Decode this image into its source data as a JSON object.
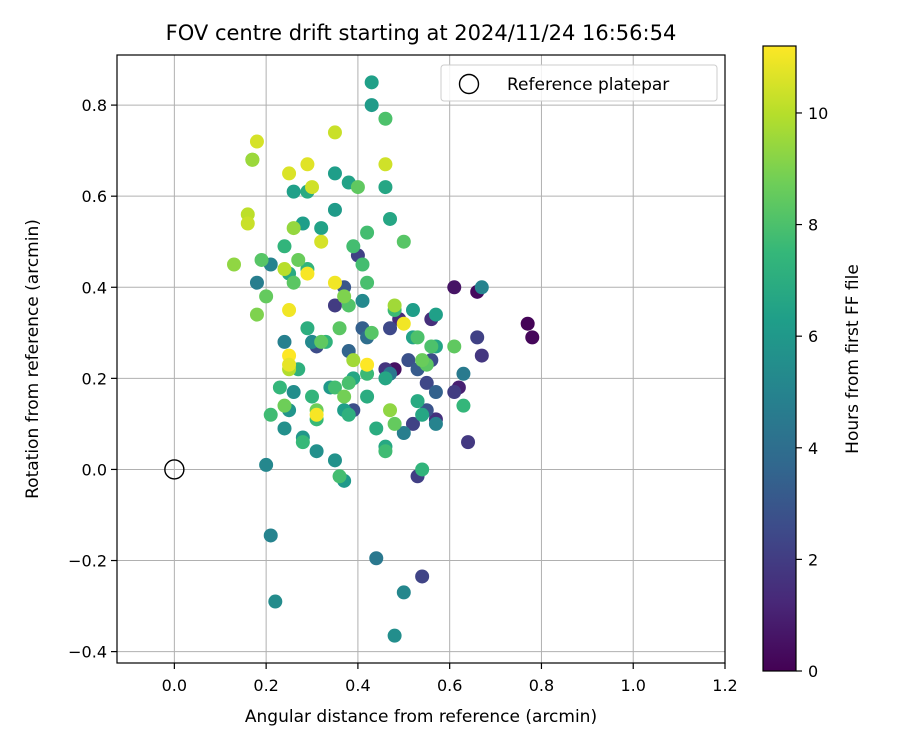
{
  "chart_data": {
    "type": "scatter",
    "title": "FOV centre drift starting at 2024/11/24 16:56:54",
    "xlabel": "Angular distance from reference (arcmin)",
    "ylabel": "Rotation from reference (arcmin)",
    "xlim": [
      -0.125,
      1.2
    ],
    "ylim": [
      -0.425,
      0.91
    ],
    "xticks": [
      "0.0",
      "0.2",
      "0.4",
      "0.6",
      "0.8",
      "1.0",
      "1.2"
    ],
    "yticks": [
      "−0.4",
      "−0.2",
      "0.0",
      "0.2",
      "0.4",
      "0.6",
      "0.8"
    ],
    "grid": true,
    "legend": {
      "position": "top-right",
      "entries": [
        "Reference platepar"
      ]
    },
    "reference_point": {
      "x": 0.0,
      "y": 0.0
    },
    "colorbar": {
      "label": "Hours from first FF file",
      "range": [
        0,
        11.2
      ],
      "ticks": [
        "0",
        "2",
        "4",
        "6",
        "8",
        "10"
      ],
      "colormap": [
        "#440154",
        "#482878",
        "#3e4989",
        "#31688e",
        "#26828e",
        "#1f9e89",
        "#35b779",
        "#6ece58",
        "#b5de2b",
        "#fde725"
      ]
    },
    "points": [
      {
        "x": 0.77,
        "y": 0.32,
        "c": 0.1
      },
      {
        "x": 0.78,
        "y": 0.29,
        "c": 0.2
      },
      {
        "x": 0.66,
        "y": 0.39,
        "c": 0.3
      },
      {
        "x": 0.61,
        "y": 0.4,
        "c": 0.6
      },
      {
        "x": 0.48,
        "y": 0.22,
        "c": 0.5
      },
      {
        "x": 0.62,
        "y": 0.18,
        "c": 1.0
      },
      {
        "x": 0.67,
        "y": 0.25,
        "c": 1.8
      },
      {
        "x": 0.66,
        "y": 0.29,
        "c": 2.2
      },
      {
        "x": 0.64,
        "y": 0.06,
        "c": 1.9
      },
      {
        "x": 0.54,
        "y": -0.235,
        "c": 2.3
      },
      {
        "x": 0.53,
        "y": -0.015,
        "c": 2.1
      },
      {
        "x": 0.56,
        "y": 0.33,
        "c": 1.5
      },
      {
        "x": 0.61,
        "y": 0.17,
        "c": 2.0
      },
      {
        "x": 0.57,
        "y": 0.11,
        "c": 1.6
      },
      {
        "x": 0.55,
        "y": 0.19,
        "c": 2.4
      },
      {
        "x": 0.52,
        "y": 0.1,
        "c": 2.2
      },
      {
        "x": 0.46,
        "y": 0.22,
        "c": 1.7
      },
      {
        "x": 0.49,
        "y": 0.33,
        "c": 1.4
      },
      {
        "x": 0.47,
        "y": 0.31,
        "c": 2.5
      },
      {
        "x": 0.35,
        "y": 0.36,
        "c": 2.0
      },
      {
        "x": 0.31,
        "y": 0.27,
        "c": 2.6
      },
      {
        "x": 0.4,
        "y": 0.47,
        "c": 2.2
      },
      {
        "x": 0.37,
        "y": 0.4,
        "c": 3.0
      },
      {
        "x": 0.39,
        "y": 0.13,
        "c": 2.7
      },
      {
        "x": 0.56,
        "y": 0.24,
        "c": 2.6
      },
      {
        "x": 0.51,
        "y": 0.24,
        "c": 2.8
      },
      {
        "x": 0.53,
        "y": 0.22,
        "c": 3.2
      },
      {
        "x": 0.57,
        "y": 0.17,
        "c": 3.5
      },
      {
        "x": 0.55,
        "y": 0.13,
        "c": 2.9
      },
      {
        "x": 0.41,
        "y": 0.31,
        "c": 3.4
      },
      {
        "x": 0.38,
        "y": 0.26,
        "c": 3.6
      },
      {
        "x": 0.42,
        "y": 0.29,
        "c": 4.0
      },
      {
        "x": 0.47,
        "y": 0.21,
        "c": 4.4
      },
      {
        "x": 0.67,
        "y": 0.4,
        "c": 5.0
      },
      {
        "x": 0.63,
        "y": 0.21,
        "c": 4.6
      },
      {
        "x": 0.57,
        "y": 0.1,
        "c": 5.0
      },
      {
        "x": 0.5,
        "y": 0.08,
        "c": 4.8
      },
      {
        "x": 0.44,
        "y": -0.195,
        "c": 4.5
      },
      {
        "x": 0.5,
        "y": -0.27,
        "c": 5.2
      },
      {
        "x": 0.48,
        "y": -0.365,
        "c": 5.5
      },
      {
        "x": 0.21,
        "y": -0.145,
        "c": 5.0
      },
      {
        "x": 0.22,
        "y": -0.29,
        "c": 5.4
      },
      {
        "x": 0.2,
        "y": 0.01,
        "c": 5.2
      },
      {
        "x": 0.18,
        "y": 0.41,
        "c": 4.8
      },
      {
        "x": 0.21,
        "y": 0.45,
        "c": 5.0
      },
      {
        "x": 0.24,
        "y": 0.28,
        "c": 4.9
      },
      {
        "x": 0.24,
        "y": 0.09,
        "c": 5.6
      },
      {
        "x": 0.25,
        "y": 0.13,
        "c": 5.8
      },
      {
        "x": 0.26,
        "y": 0.17,
        "c": 5.5
      },
      {
        "x": 0.28,
        "y": 0.07,
        "c": 5.9
      },
      {
        "x": 0.31,
        "y": 0.04,
        "c": 5.6
      },
      {
        "x": 0.35,
        "y": 0.02,
        "c": 5.7
      },
      {
        "x": 0.37,
        "y": -0.025,
        "c": 6.0
      },
      {
        "x": 0.3,
        "y": 0.28,
        "c": 5.3
      },
      {
        "x": 0.34,
        "y": 0.18,
        "c": 6.0
      },
      {
        "x": 0.37,
        "y": 0.13,
        "c": 6.2
      },
      {
        "x": 0.41,
        "y": 0.37,
        "c": 5.3
      },
      {
        "x": 0.43,
        "y": 0.85,
        "c": 6.3
      },
      {
        "x": 0.43,
        "y": 0.8,
        "c": 6.1
      },
      {
        "x": 0.35,
        "y": 0.65,
        "c": 6.2
      },
      {
        "x": 0.38,
        "y": 0.63,
        "c": 6.4
      },
      {
        "x": 0.46,
        "y": 0.62,
        "c": 6.6
      },
      {
        "x": 0.35,
        "y": 0.57,
        "c": 6.1
      },
      {
        "x": 0.47,
        "y": 0.55,
        "c": 6.6
      },
      {
        "x": 0.26,
        "y": 0.61,
        "c": 6.3
      },
      {
        "x": 0.29,
        "y": 0.61,
        "c": 6.8
      },
      {
        "x": 0.28,
        "y": 0.54,
        "c": 6.2
      },
      {
        "x": 0.32,
        "y": 0.53,
        "c": 6.4
      },
      {
        "x": 0.57,
        "y": 0.34,
        "c": 6.3
      },
      {
        "x": 0.52,
        "y": 0.35,
        "c": 6.2
      },
      {
        "x": 0.52,
        "y": 0.29,
        "c": 6.4
      },
      {
        "x": 0.57,
        "y": 0.27,
        "c": 6.5
      },
      {
        "x": 0.53,
        "y": 0.15,
        "c": 6.8
      },
      {
        "x": 0.54,
        "y": 0.12,
        "c": 6.6
      },
      {
        "x": 0.46,
        "y": 0.05,
        "c": 6.7
      },
      {
        "x": 0.44,
        "y": 0.09,
        "c": 6.9
      },
      {
        "x": 0.46,
        "y": 0.2,
        "c": 6.6
      },
      {
        "x": 0.39,
        "y": 0.2,
        "c": 6.6
      },
      {
        "x": 0.42,
        "y": 0.16,
        "c": 6.9
      },
      {
        "x": 0.38,
        "y": 0.12,
        "c": 7.1
      },
      {
        "x": 0.33,
        "y": 0.28,
        "c": 7.2
      },
      {
        "x": 0.29,
        "y": 0.31,
        "c": 7.0
      },
      {
        "x": 0.27,
        "y": 0.22,
        "c": 7.1
      },
      {
        "x": 0.25,
        "y": 0.43,
        "c": 6.8
      },
      {
        "x": 0.24,
        "y": 0.49,
        "c": 7.3
      },
      {
        "x": 0.29,
        "y": 0.44,
        "c": 7.3
      },
      {
        "x": 0.3,
        "y": 0.16,
        "c": 7.3
      },
      {
        "x": 0.28,
        "y": 0.06,
        "c": 7.5
      },
      {
        "x": 0.23,
        "y": 0.18,
        "c": 7.4
      },
      {
        "x": 0.21,
        "y": 0.12,
        "c": 7.7
      },
      {
        "x": 0.63,
        "y": 0.14,
        "c": 7.4
      },
      {
        "x": 0.48,
        "y": 0.35,
        "c": 7.6
      },
      {
        "x": 0.46,
        "y": 0.04,
        "c": 7.7
      },
      {
        "x": 0.54,
        "y": 0.0,
        "c": 7.3
      },
      {
        "x": 0.36,
        "y": -0.015,
        "c": 7.8
      },
      {
        "x": 0.31,
        "y": 0.11,
        "c": 7.5
      },
      {
        "x": 0.35,
        "y": 0.18,
        "c": 7.8
      },
      {
        "x": 0.38,
        "y": 0.19,
        "c": 7.9
      },
      {
        "x": 0.42,
        "y": 0.21,
        "c": 7.6
      },
      {
        "x": 0.41,
        "y": 0.45,
        "c": 7.8
      },
      {
        "x": 0.42,
        "y": 0.41,
        "c": 7.9
      },
      {
        "x": 0.39,
        "y": 0.49,
        "c": 7.8
      },
      {
        "x": 0.42,
        "y": 0.52,
        "c": 7.8
      },
      {
        "x": 0.46,
        "y": 0.77,
        "c": 8.0
      },
      {
        "x": 0.5,
        "y": 0.5,
        "c": 8.2
      },
      {
        "x": 0.53,
        "y": 0.29,
        "c": 8.0
      },
      {
        "x": 0.56,
        "y": 0.27,
        "c": 8.0
      },
      {
        "x": 0.61,
        "y": 0.27,
        "c": 8.4
      },
      {
        "x": 0.55,
        "y": 0.23,
        "c": 8.3
      },
      {
        "x": 0.54,
        "y": 0.24,
        "c": 8.6
      },
      {
        "x": 0.48,
        "y": 0.1,
        "c": 8.5
      },
      {
        "x": 0.43,
        "y": 0.3,
        "c": 8.2
      },
      {
        "x": 0.36,
        "y": 0.31,
        "c": 8.3
      },
      {
        "x": 0.38,
        "y": 0.36,
        "c": 8.1
      },
      {
        "x": 0.4,
        "y": 0.62,
        "c": 8.4
      },
      {
        "x": 0.19,
        "y": 0.46,
        "c": 8.2
      },
      {
        "x": 0.2,
        "y": 0.38,
        "c": 8.5
      },
      {
        "x": 0.26,
        "y": 0.41,
        "c": 8.3
      },
      {
        "x": 0.27,
        "y": 0.46,
        "c": 8.6
      },
      {
        "x": 0.24,
        "y": 0.14,
        "c": 8.7
      },
      {
        "x": 0.32,
        "y": 0.28,
        "c": 8.4
      },
      {
        "x": 0.31,
        "y": 0.13,
        "c": 8.7
      },
      {
        "x": 0.37,
        "y": 0.16,
        "c": 8.8
      },
      {
        "x": 0.17,
        "y": 0.68,
        "c": 8.9
      },
      {
        "x": 0.18,
        "y": 0.34,
        "c": 9.0
      },
      {
        "x": 0.13,
        "y": 0.45,
        "c": 9.3
      },
      {
        "x": 0.37,
        "y": 0.38,
        "c": 9.0
      },
      {
        "x": 0.26,
        "y": 0.53,
        "c": 9.4
      },
      {
        "x": 0.47,
        "y": 0.13,
        "c": 9.3
      },
      {
        "x": 0.48,
        "y": 0.36,
        "c": 9.6
      },
      {
        "x": 0.16,
        "y": 0.56,
        "c": 10.1
      },
      {
        "x": 0.16,
        "y": 0.54,
        "c": 10.3
      },
      {
        "x": 0.24,
        "y": 0.44,
        "c": 10.0
      },
      {
        "x": 0.39,
        "y": 0.24,
        "c": 9.6
      },
      {
        "x": 0.25,
        "y": 0.22,
        "c": 9.9
      },
      {
        "x": 0.17,
        "y": 0.68,
        "c": 9.5
      },
      {
        "x": 0.18,
        "y": 0.72,
        "c": 10.5
      },
      {
        "x": 0.25,
        "y": 0.65,
        "c": 10.6
      },
      {
        "x": 0.29,
        "y": 0.67,
        "c": 10.7
      },
      {
        "x": 0.3,
        "y": 0.62,
        "c": 10.4
      },
      {
        "x": 0.32,
        "y": 0.5,
        "c": 10.5
      },
      {
        "x": 0.35,
        "y": 0.74,
        "c": 10.3
      },
      {
        "x": 0.46,
        "y": 0.67,
        "c": 10.4
      },
      {
        "x": 0.35,
        "y": 0.41,
        "c": 11.0
      },
      {
        "x": 0.29,
        "y": 0.43,
        "c": 11.1
      },
      {
        "x": 0.25,
        "y": 0.35,
        "c": 11.0
      },
      {
        "x": 0.42,
        "y": 0.23,
        "c": 11.2
      },
      {
        "x": 0.5,
        "y": 0.32,
        "c": 11.0
      },
      {
        "x": 0.25,
        "y": 0.25,
        "c": 11.2
      },
      {
        "x": 0.31,
        "y": 0.12,
        "c": 11.1
      },
      {
        "x": 0.25,
        "y": 0.23,
        "c": 10.8
      }
    ]
  }
}
